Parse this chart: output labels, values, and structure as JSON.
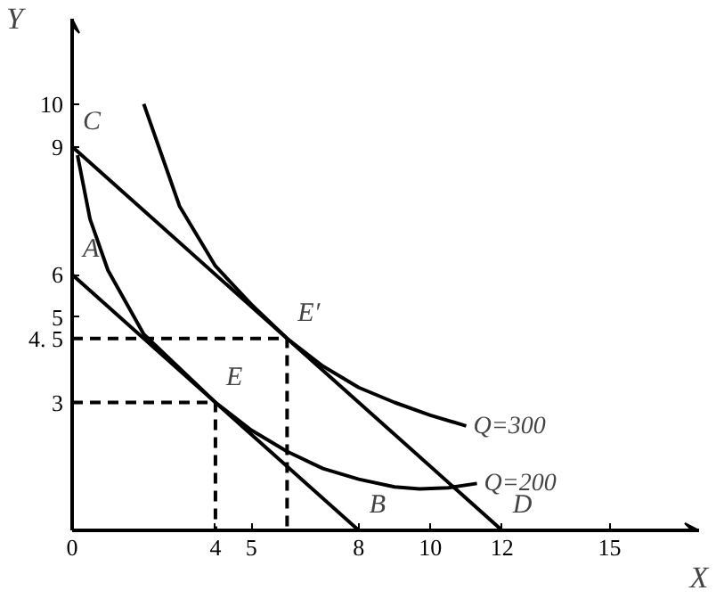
{
  "chart_data": {
    "type": "line",
    "xlabel": "X",
    "ylabel": "Y",
    "xlim": [
      0,
      17.5
    ],
    "ylim": [
      0,
      12
    ],
    "xticks": [
      0,
      4,
      5,
      8,
      10,
      12,
      15
    ],
    "yticks": [
      3,
      {
        "value": 4.5,
        "label": "4. 5"
      },
      5,
      6,
      9,
      10
    ],
    "grid": false,
    "legend": false,
    "marker": "none",
    "tick_labels": true,
    "series": [
      {
        "color": "#000000",
        "x": [
          0,
          8
        ],
        "values": [
          6,
          0
        ]
      },
      {
        "color": "#000000",
        "x": [
          0,
          12
        ],
        "values": [
          9,
          0
        ]
      },
      {
        "name": "Q=200",
        "color": "#000000",
        "x": [
          0.15,
          0.5,
          1,
          2,
          3,
          4,
          5,
          6,
          7,
          8,
          9,
          9.7,
          10.5,
          11.3
        ],
        "values": [
          8.8,
          7.3,
          6.1,
          4.6,
          3.8,
          3,
          2.35,
          1.85,
          1.45,
          1.2,
          1.02,
          0.97,
          1.0,
          1.1
        ]
      },
      {
        "name": "Q=300",
        "color": "#000000",
        "x": [
          2,
          3,
          4,
          5,
          6,
          7,
          8,
          9,
          10,
          11
        ],
        "values": [
          10,
          7.6,
          6.2,
          5.3,
          4.5,
          3.85,
          3.35,
          3.0,
          2.7,
          2.45
        ]
      },
      {
        "color": "#000000",
        "line_style": "dashed",
        "x": [
          0,
          4,
          4
        ],
        "values": [
          3,
          3,
          0
        ]
      },
      {
        "color": "#000000",
        "line_style": "dashed",
        "x": [
          0,
          6,
          6
        ],
        "values": [
          4.5,
          4.5,
          0
        ]
      }
    ],
    "annotations": [
      {
        "text": "A",
        "x": 0,
        "y": 6
      },
      {
        "text": "B",
        "x": 8,
        "y": 0
      },
      {
        "text": "C",
        "x": 0,
        "y": 9
      },
      {
        "text": "D",
        "x": 12,
        "y": 0
      },
      {
        "text": "E",
        "x": 4,
        "y": 3
      },
      {
        "text": "E′",
        "x": 6,
        "y": 4.5
      }
    ]
  }
}
